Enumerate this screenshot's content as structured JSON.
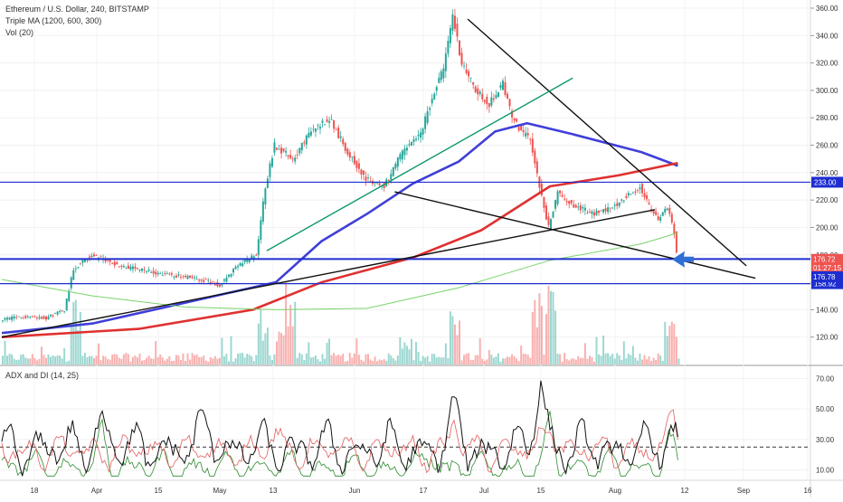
{
  "header": {
    "title": "Ethereum / U.S. Dollar, 240, BITSTAMP",
    "ma_label": "Triple MA (1200, 600, 300)",
    "vol_label": "Vol (20)",
    "adx_label": "ADX and DI (14, 25)"
  },
  "colors": {
    "up_candle": "#26a69a",
    "down_candle": "#ef5350",
    "ma_slow": "#3f3fd8",
    "ma_mid": "#e03030",
    "ma_fast": "#79d36b",
    "trendline_green": "#0f9a68",
    "level_line": "#1e2ecf",
    "arrow": "#2f6fd6",
    "adx": "#111111",
    "di_plus": "#2d8a2d",
    "di_minus": "#e35d5d"
  },
  "chart_data": [
    {
      "type": "candlestick",
      "title": "Ethereum / U.S. Dollar, 240, BITSTAMP",
      "ylim": [
        100,
        365
      ],
      "y_ticks": [
        120,
        140,
        160,
        180,
        200,
        220,
        240,
        260,
        280,
        300,
        320,
        340,
        360
      ],
      "x_ticks": [
        "18",
        "Apr",
        "15",
        "May",
        "13",
        "Jun",
        "17",
        "Jul",
        "15",
        "Aug",
        "12",
        "Sep",
        "16"
      ],
      "price_path": [
        {
          "day": 0,
          "price": 133
        },
        {
          "day": 6,
          "price": 135
        },
        {
          "day": 10,
          "price": 134
        },
        {
          "day": 14,
          "price": 140
        },
        {
          "day": 16,
          "price": 170
        },
        {
          "day": 20,
          "price": 180
        },
        {
          "day": 26,
          "price": 172
        },
        {
          "day": 32,
          "price": 168
        },
        {
          "day": 38,
          "price": 165
        },
        {
          "day": 44,
          "price": 162
        },
        {
          "day": 48,
          "price": 158
        },
        {
          "day": 52,
          "price": 172
        },
        {
          "day": 56,
          "price": 180
        },
        {
          "day": 58,
          "price": 230
        },
        {
          "day": 60,
          "price": 260
        },
        {
          "day": 64,
          "price": 250
        },
        {
          "day": 68,
          "price": 270
        },
        {
          "day": 72,
          "price": 280
        },
        {
          "day": 76,
          "price": 255
        },
        {
          "day": 80,
          "price": 235
        },
        {
          "day": 84,
          "price": 230
        },
        {
          "day": 88,
          "price": 255
        },
        {
          "day": 92,
          "price": 268
        },
        {
          "day": 95,
          "price": 300
        },
        {
          "day": 97,
          "price": 315
        },
        {
          "day": 99,
          "price": 355
        },
        {
          "day": 101,
          "price": 320
        },
        {
          "day": 104,
          "price": 300
        },
        {
          "day": 107,
          "price": 290
        },
        {
          "day": 110,
          "price": 305
        },
        {
          "day": 112,
          "price": 280
        },
        {
          "day": 114,
          "price": 270
        },
        {
          "day": 116,
          "price": 265
        },
        {
          "day": 118,
          "price": 230
        },
        {
          "day": 120,
          "price": 200
        },
        {
          "day": 122,
          "price": 225
        },
        {
          "day": 126,
          "price": 215
        },
        {
          "day": 130,
          "price": 210
        },
        {
          "day": 134,
          "price": 215
        },
        {
          "day": 138,
          "price": 225
        },
        {
          "day": 140,
          "price": 230
        },
        {
          "day": 142,
          "price": 215
        },
        {
          "day": 144,
          "price": 205
        },
        {
          "day": 146,
          "price": 215
        },
        {
          "day": 147.5,
          "price": 196
        },
        {
          "day": 148,
          "price": 182
        }
      ],
      "moving_averages": [
        {
          "name": "MA 1200",
          "color": "#3f3fd8",
          "points": [
            {
              "day": 0,
              "value": 123
            },
            {
              "day": 20,
              "value": 130
            },
            {
              "day": 40,
              "value": 145
            },
            {
              "day": 60,
              "value": 160
            },
            {
              "day": 70,
              "value": 190
            },
            {
              "day": 80,
              "value": 210
            },
            {
              "day": 90,
              "value": 232
            },
            {
              "day": 100,
              "value": 248
            },
            {
              "day": 108,
              "value": 270
            },
            {
              "day": 115,
              "value": 276
            },
            {
              "day": 125,
              "value": 268
            },
            {
              "day": 140,
              "value": 255
            },
            {
              "day": 148,
              "value": 245
            }
          ]
        },
        {
          "name": "MA 600",
          "color": "#e03030",
          "points": [
            {
              "day": 0,
              "value": 120
            },
            {
              "day": 30,
              "value": 126
            },
            {
              "day": 55,
              "value": 140
            },
            {
              "day": 70,
              "value": 160
            },
            {
              "day": 90,
              "value": 178
            },
            {
              "day": 105,
              "value": 198
            },
            {
              "day": 120,
              "value": 230
            },
            {
              "day": 135,
              "value": 238
            },
            {
              "day": 148,
              "value": 247
            }
          ]
        },
        {
          "name": "MA 300",
          "color": "#79d36b",
          "points": [
            {
              "day": 0,
              "value": 162
            },
            {
              "day": 20,
              "value": 150
            },
            {
              "day": 40,
              "value": 142
            },
            {
              "day": 60,
              "value": 140
            },
            {
              "day": 80,
              "value": 141
            },
            {
              "day": 100,
              "value": 156
            },
            {
              "day": 120,
              "value": 176
            },
            {
              "day": 140,
              "value": 188
            },
            {
              "day": 148,
              "value": 196
            }
          ]
        }
      ],
      "trendlines": [
        {
          "from": {
            "day": 0,
            "price": 120
          },
          "to": {
            "day": 143,
            "price": 213
          },
          "color": "#111111"
        },
        {
          "from": {
            "day": 102,
            "price": 352
          },
          "to": {
            "day": 163,
            "price": 172
          },
          "color": "#111111"
        },
        {
          "from": {
            "day": 86,
            "price": 226
          },
          "to": {
            "day": 165,
            "price": 163
          },
          "color": "#111111"
        },
        {
          "from": {
            "day": 58,
            "price": 183
          },
          "to": {
            "day": 125,
            "price": 309
          },
          "color": "#0f9a68"
        }
      ],
      "horizontal_levels": [
        {
          "price": 233,
          "label": "233.00",
          "color": "#1e2ecf"
        },
        {
          "price": 177,
          "label": "176.72",
          "color": "#1e2ecf"
        },
        {
          "price": 159,
          "label": "158.92",
          "color": "#1e2ecf"
        }
      ],
      "price_tags": [
        {
          "price": 176.72,
          "label": "176.72",
          "color": "#ef5350"
        },
        {
          "price": 170.5,
          "label": "01:27:15",
          "color": "#ef5350"
        },
        {
          "price": 164,
          "label": "176.78",
          "color": "#1e2ecf"
        }
      ],
      "annotation": "arrow pointing left at 176.72 level",
      "volume_scale": "relative bars"
    },
    {
      "type": "line",
      "title": "ADX and DI (14, 25)",
      "ylim": [
        5,
        75
      ],
      "y_ticks": [
        10,
        30,
        50,
        70
      ],
      "y_tick_labels": [
        "10.00",
        "30.00",
        "50.00",
        "70.00"
      ],
      "threshold": 25,
      "series": []
    }
  ]
}
